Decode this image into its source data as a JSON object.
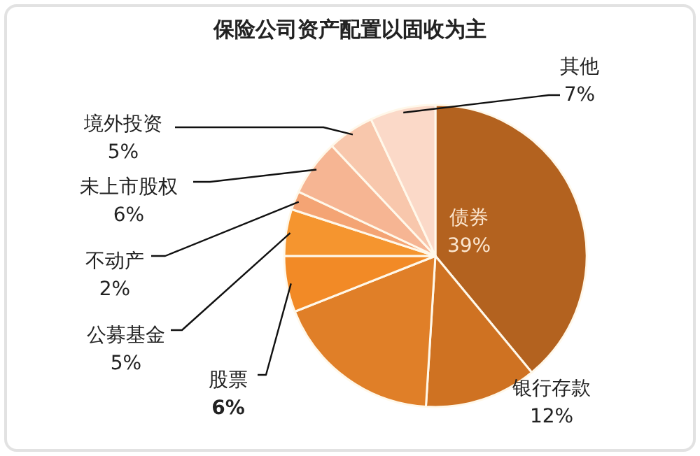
{
  "chart_data": {
    "type": "pie",
    "title": "保险公司资产配置以固收为主",
    "categories": [
      "债券",
      "银行存款",
      null,
      "股票",
      "公募基金",
      "不动产",
      "未上市股权",
      "境外投资",
      "其他"
    ],
    "values": [
      39,
      12,
      18,
      6,
      5,
      2,
      6,
      5,
      7
    ],
    "value_labels": [
      "39%",
      "12%",
      null,
      "6%",
      "5%",
      "2%",
      "6%",
      "5%",
      "7%"
    ],
    "colors": [
      "#b3621f",
      "#cf7222",
      "#e07f28",
      "#f28a26",
      "#f5952f",
      "#f4a474",
      "#f6b593",
      "#f8c7ac",
      "#fbd9c8"
    ],
    "legend": false
  }
}
